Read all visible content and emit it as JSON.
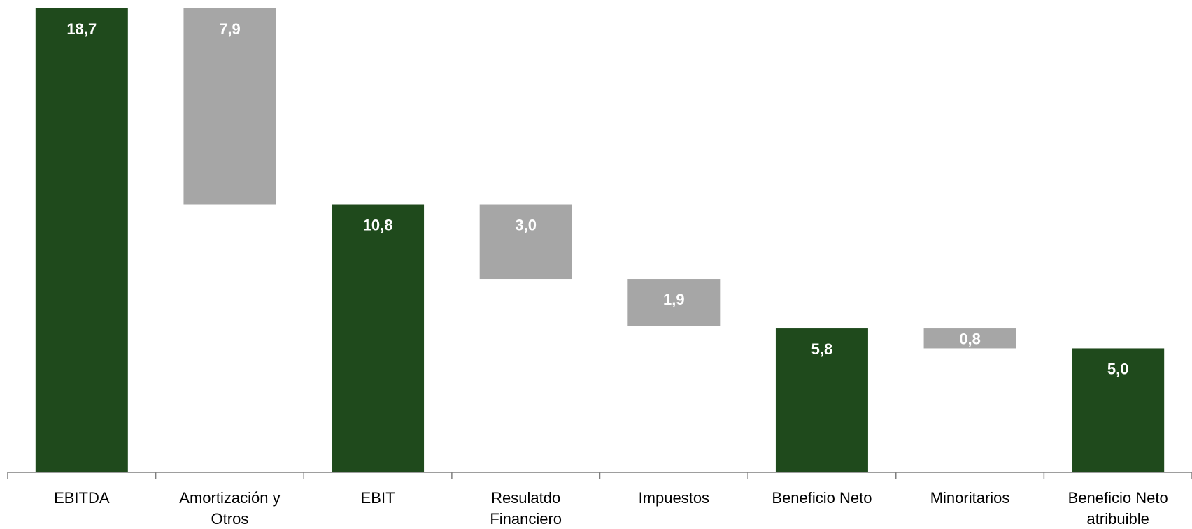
{
  "chart_data": {
    "type": "bar",
    "subtype": "waterfall",
    "categories": [
      [
        "EBITDA"
      ],
      [
        "Amortización y",
        "Otros"
      ],
      [
        "EBIT"
      ],
      [
        "Resulatdo",
        "Financiero"
      ],
      [
        "Impuestos"
      ],
      [
        "Beneficio Neto"
      ],
      [
        "Minoritarios"
      ],
      [
        "Beneficio Neto",
        "atribuible"
      ]
    ],
    "bars": [
      {
        "kind": "total",
        "value": 18.7,
        "label": "18,7",
        "start": 0,
        "end": 18.7
      },
      {
        "kind": "decrease",
        "value": 7.9,
        "label": "7,9",
        "start": 10.8,
        "end": 18.7
      },
      {
        "kind": "total",
        "value": 10.8,
        "label": "10,8",
        "start": 0,
        "end": 10.8
      },
      {
        "kind": "decrease",
        "value": 3.0,
        "label": "3,0",
        "start": 7.8,
        "end": 10.8
      },
      {
        "kind": "decrease",
        "value": 1.9,
        "label": "1,9",
        "start": 5.9,
        "end": 7.8
      },
      {
        "kind": "total",
        "value": 5.8,
        "label": "5,8",
        "start": 0,
        "end": 5.8
      },
      {
        "kind": "decrease",
        "value": 0.8,
        "label": "0,8",
        "start": 5.0,
        "end": 5.8
      },
      {
        "kind": "total",
        "value": 5.0,
        "label": "5,0",
        "start": 0,
        "end": 5.0
      }
    ],
    "ylim": [
      0,
      18.7
    ],
    "grid": false,
    "legend": "none",
    "colors": {
      "total": "#1f4a1c",
      "decrease": "#a6a6a6"
    }
  }
}
